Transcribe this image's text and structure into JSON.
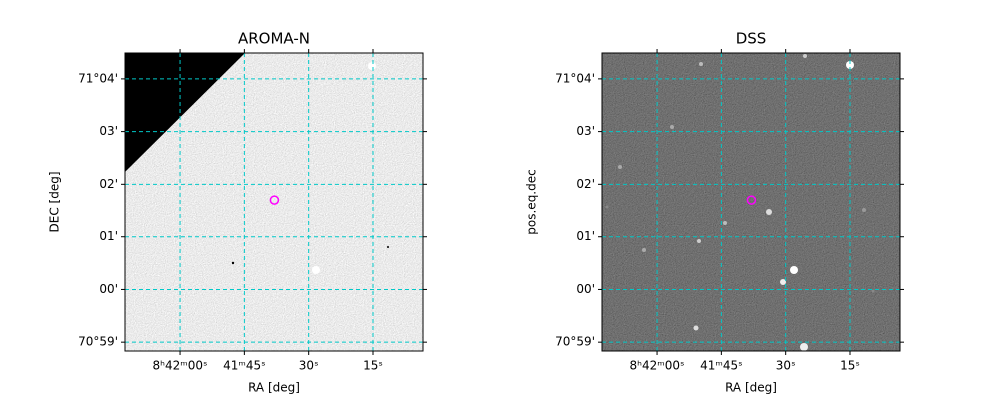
{
  "chart_data": [
    {
      "type": "image",
      "title": "AROMA-N",
      "xlabel": "RA [deg]",
      "ylabel": "DEC [deg]",
      "xlim": [
        130.5535,
        130.2639
      ],
      "ylim": [
        70.9805,
        71.0749
      ],
      "xticks": [
        {
          "value": 130.5,
          "label": "8ʰ42ᵐ00ˢ"
        },
        {
          "value": 130.4375,
          "label": "41ᵐ45ˢ"
        },
        {
          "value": 130.375,
          "label": "30ˢ"
        },
        {
          "value": 130.3125,
          "label": "15ˢ"
        }
      ],
      "yticks": [
        {
          "value": 71.0667,
          "label": "71°04'"
        },
        {
          "value": 71.05,
          "label": "03'"
        },
        {
          "value": 71.0333,
          "label": "02'"
        },
        {
          "value": 71.0167,
          "label": "01'"
        },
        {
          "value": 71.0,
          "label": "00'"
        },
        {
          "value": 70.9833,
          "label": "70°59'"
        }
      ],
      "grid": true,
      "grid_color": "#00c8c8",
      "points": {
        "x": [
          130.4083
        ],
        "y": [
          71.0283
        ],
        "color": "#ff00ff"
      }
    },
    {
      "type": "image",
      "title": "DSS",
      "xlabel": "RA [deg]",
      "ylabel": "pos.eq.dec",
      "xlim": [
        130.5535,
        130.2639
      ],
      "ylim": [
        70.9805,
        71.0749
      ],
      "xticks": [
        {
          "value": 130.5,
          "label": "8ʰ42ᵐ00ˢ"
        },
        {
          "value": 130.4375,
          "label": "41ᵐ45ˢ"
        },
        {
          "value": 130.375,
          "label": "30ˢ"
        },
        {
          "value": 130.3125,
          "label": "15ˢ"
        }
      ],
      "yticks": [
        {
          "value": 71.0667,
          "label": "71°04'"
        },
        {
          "value": 71.05,
          "label": "03'"
        },
        {
          "value": 71.0333,
          "label": "02'"
        },
        {
          "value": 71.0167,
          "label": "01'"
        },
        {
          "value": 71.0,
          "label": "00'"
        },
        {
          "value": 70.9833,
          "label": "70°59'"
        }
      ],
      "grid": true,
      "grid_color": "#00c8c8",
      "points": {
        "x": [
          130.4083
        ],
        "y": [
          71.0283
        ],
        "color": "#ff00ff"
      }
    }
  ]
}
